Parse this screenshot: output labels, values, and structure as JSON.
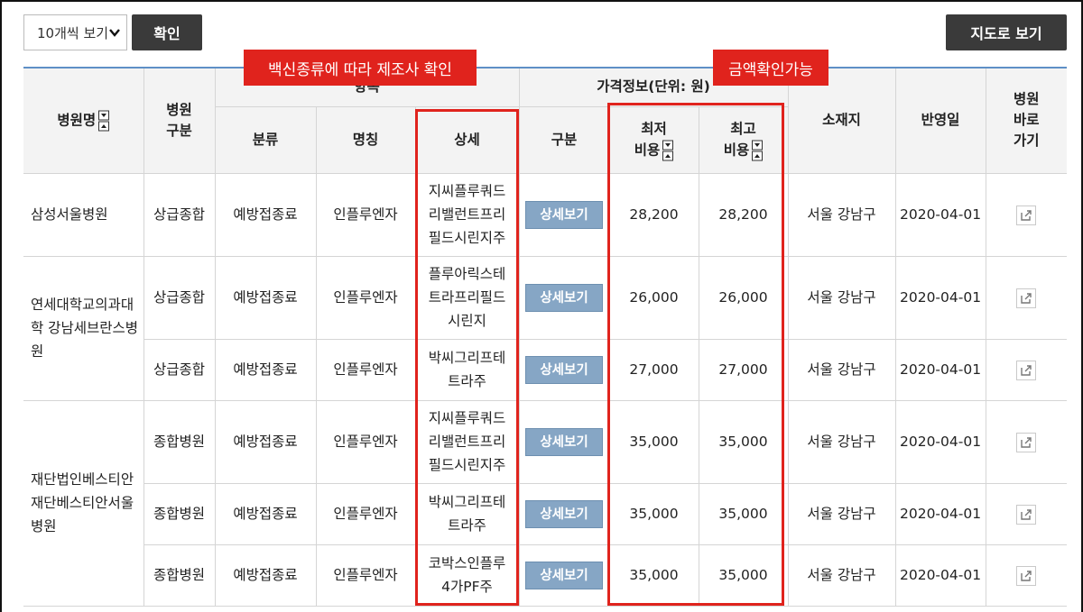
{
  "toolbar": {
    "page_size_value": "10개씩 보기",
    "confirm_label": "확인",
    "map_label": "지도로 보기"
  },
  "annotations": {
    "manufacturer_note": "백신종류에 따라 제조사 확인",
    "price_note": "금액확인가능",
    "color": "#e0231d"
  },
  "table": {
    "headers": {
      "hospital_name": "병원명",
      "hospital_type": [
        "병원",
        "구분"
      ],
      "group_item": "항목",
      "category": "분류",
      "item_name": "명칭",
      "detail": "상세",
      "group_price": "가격정보(단위: 원)",
      "division": "구분",
      "min_cost": [
        "최저",
        "비용"
      ],
      "max_cost": [
        "최고",
        "비용"
      ],
      "location": "소재지",
      "reflect_date": "반영일",
      "go_hospital": [
        "병원",
        "바로",
        "가기"
      ]
    },
    "detail_button_label": "상세보기",
    "header_color": "#5e8fc6",
    "button_color": "#86a6c5",
    "rows": [
      {
        "hospital": "삼성서울병원",
        "type": "상급종합",
        "category": "예방접종료",
        "item": "인플루엔자",
        "detail": [
          "지씨플루쿼드",
          "리밸런트프리",
          "필드시린지주"
        ],
        "min": "28,200",
        "max": "28,200",
        "location": "서울 강남구",
        "date": "2020-04-01"
      },
      {
        "hospital": "연세대학교의과대학 강남세브란스병원",
        "type": "상급종합",
        "category": "예방접종료",
        "item": "인플루엔자",
        "detail": [
          "플루아릭스테",
          "트라프리필드",
          "시린지"
        ],
        "min": "26,000",
        "max": "26,000",
        "location": "서울 강남구",
        "date": "2020-04-01"
      },
      {
        "type": "상급종합",
        "category": "예방접종료",
        "item": "인플루엔자",
        "detail": [
          "박씨그리프테",
          "트라주"
        ],
        "min": "27,000",
        "max": "27,000",
        "location": "서울 강남구",
        "date": "2020-04-01"
      },
      {
        "hospital": "재단법인베스티안재단베스티안서울병원",
        "type": "종합병원",
        "category": "예방접종료",
        "item": "인플루엔자",
        "detail": [
          "지씨플루쿼드",
          "리밸런트프리",
          "필드시린지주"
        ],
        "min": "35,000",
        "max": "35,000",
        "location": "서울 강남구",
        "date": "2020-04-01"
      },
      {
        "type": "종합병원",
        "category": "예방접종료",
        "item": "인플루엔자",
        "detail": [
          "박씨그리프테",
          "트라주"
        ],
        "min": "35,000",
        "max": "35,000",
        "location": "서울 강남구",
        "date": "2020-04-01"
      },
      {
        "type": "종합병원",
        "category": "예방접종료",
        "item": "인플루엔자",
        "detail": [
          "코박스인플루",
          "4가PF주"
        ],
        "min": "35,000",
        "max": "35,000",
        "location": "서울 강남구",
        "date": "2020-04-01"
      }
    ]
  }
}
